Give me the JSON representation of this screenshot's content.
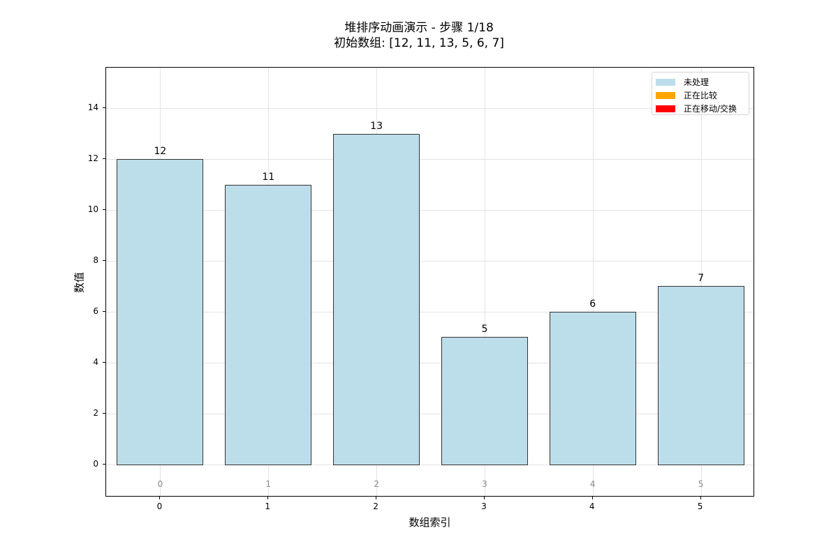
{
  "title": {
    "line1": "堆排序动画演示 - 步骤 1/18",
    "line2": "初始数组: [12, 11, 13, 5, 6, 7]"
  },
  "axes": {
    "xlabel": "数组索引",
    "ylabel": "数值",
    "yticks": [
      "0",
      "2",
      "4",
      "6",
      "8",
      "10",
      "12",
      "14"
    ],
    "xticks": [
      "0",
      "1",
      "2",
      "3",
      "4",
      "5"
    ]
  },
  "legend": [
    {
      "label": "未处理",
      "color": "#add8e6"
    },
    {
      "label": "正在比较",
      "color": "#ffa500"
    },
    {
      "label": "正在移动/交换",
      "color": "#ff0000"
    }
  ],
  "bars": [
    {
      "index": "0",
      "value": "12"
    },
    {
      "index": "1",
      "value": "11"
    },
    {
      "index": "2",
      "value": "13"
    },
    {
      "index": "3",
      "value": "5"
    },
    {
      "index": "4",
      "value": "6"
    },
    {
      "index": "5",
      "value": "7"
    }
  ],
  "chart_data": {
    "type": "bar",
    "title": "堆排序动画演示 - 步骤 1/18\n初始数组: [12, 11, 13, 5, 6, 7]",
    "categories": [
      "0",
      "1",
      "2",
      "3",
      "4",
      "5"
    ],
    "values": [
      12,
      11,
      13,
      5,
      6,
      7
    ],
    "bar_colors": [
      "#add8e6",
      "#add8e6",
      "#add8e6",
      "#add8e6",
      "#add8e6",
      "#add8e6"
    ],
    "xlabel": "数组索引",
    "ylabel": "数值",
    "ylim": [
      -1.3,
      15.6
    ],
    "xlim": [
      -0.5,
      5.5
    ],
    "yticks": [
      0,
      2,
      4,
      6,
      8,
      10,
      12,
      14
    ],
    "grid": true,
    "legend": {
      "position": "upper right",
      "entries": [
        "未处理",
        "正在比较",
        "正在移动/交换"
      ]
    },
    "annotations": {
      "value_labels_above_bars": [
        12,
        11,
        13,
        5,
        6,
        7
      ],
      "index_labels_below_bars": [
        0,
        1,
        2,
        3,
        4,
        5
      ]
    },
    "step": {
      "current": 1,
      "total": 18
    }
  }
}
